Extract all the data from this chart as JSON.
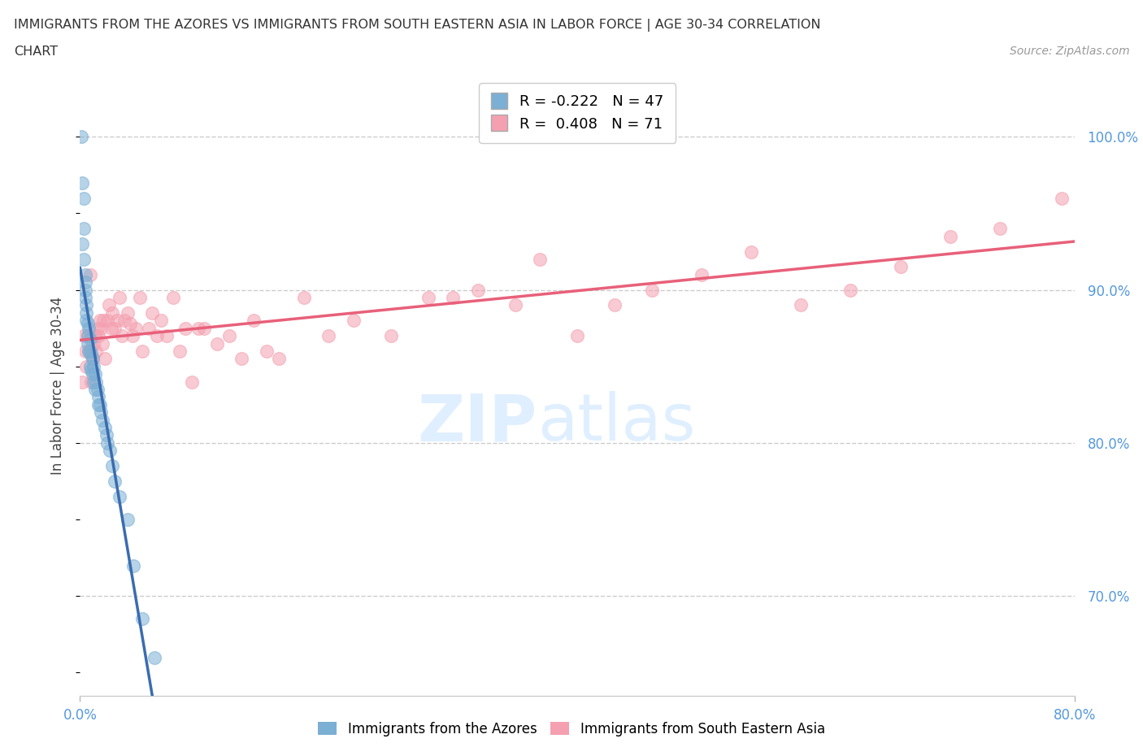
{
  "title_line1": "IMMIGRANTS FROM THE AZORES VS IMMIGRANTS FROM SOUTH EASTERN ASIA IN LABOR FORCE | AGE 30-34 CORRELATION",
  "title_line2": "CHART",
  "source_text": "Source: ZipAtlas.com",
  "xlabel_left": "Immigrants from the Azores",
  "ylabel": "In Labor Force | Age 30-34",
  "xlabel_right": "Immigrants from South Eastern Asia",
  "xlim": [
    0.0,
    0.8
  ],
  "ylim": [
    0.635,
    1.04
  ],
  "yticks": [
    0.7,
    0.8,
    0.9,
    1.0
  ],
  "blue_R": -0.222,
  "blue_N": 47,
  "pink_R": 0.408,
  "pink_N": 71,
  "blue_color": "#7BAFD4",
  "pink_color": "#F4A0B0",
  "blue_line_color": "#3A6CB0",
  "pink_line_color": "#E8607A",
  "watermark_zip": "ZIP",
  "watermark_atlas": "atlas",
  "blue_scatter_x": [
    0.001,
    0.002,
    0.002,
    0.003,
    0.003,
    0.003,
    0.004,
    0.004,
    0.004,
    0.004,
    0.005,
    0.005,
    0.005,
    0.006,
    0.006,
    0.006,
    0.007,
    0.007,
    0.008,
    0.008,
    0.008,
    0.009,
    0.009,
    0.01,
    0.01,
    0.011,
    0.011,
    0.012,
    0.012,
    0.013,
    0.014,
    0.015,
    0.015,
    0.016,
    0.017,
    0.018,
    0.02,
    0.021,
    0.022,
    0.024,
    0.026,
    0.028,
    0.032,
    0.038,
    0.043,
    0.05,
    0.06
  ],
  "blue_scatter_y": [
    1.0,
    0.97,
    0.93,
    0.96,
    0.94,
    0.92,
    0.91,
    0.905,
    0.9,
    0.895,
    0.89,
    0.885,
    0.88,
    0.878,
    0.87,
    0.865,
    0.875,
    0.86,
    0.868,
    0.86,
    0.85,
    0.858,
    0.848,
    0.855,
    0.845,
    0.85,
    0.84,
    0.845,
    0.835,
    0.84,
    0.835,
    0.83,
    0.825,
    0.825,
    0.82,
    0.815,
    0.81,
    0.805,
    0.8,
    0.795,
    0.785,
    0.775,
    0.765,
    0.75,
    0.72,
    0.685,
    0.66
  ],
  "pink_scatter_x": [
    0.002,
    0.003,
    0.004,
    0.005,
    0.006,
    0.007,
    0.008,
    0.009,
    0.01,
    0.011,
    0.012,
    0.013,
    0.014,
    0.015,
    0.016,
    0.017,
    0.018,
    0.019,
    0.02,
    0.022,
    0.023,
    0.025,
    0.026,
    0.028,
    0.03,
    0.032,
    0.034,
    0.036,
    0.038,
    0.04,
    0.042,
    0.045,
    0.048,
    0.05,
    0.055,
    0.058,
    0.062,
    0.065,
    0.07,
    0.075,
    0.08,
    0.085,
    0.09,
    0.095,
    0.1,
    0.11,
    0.12,
    0.13,
    0.14,
    0.15,
    0.16,
    0.18,
    0.2,
    0.22,
    0.25,
    0.28,
    0.3,
    0.32,
    0.35,
    0.37,
    0.4,
    0.43,
    0.46,
    0.5,
    0.54,
    0.58,
    0.62,
    0.66,
    0.7,
    0.74,
    0.79
  ],
  "pink_scatter_y": [
    0.84,
    0.87,
    0.86,
    0.85,
    0.87,
    0.86,
    0.91,
    0.84,
    0.855,
    0.865,
    0.87,
    0.86,
    0.875,
    0.87,
    0.88,
    0.875,
    0.865,
    0.88,
    0.855,
    0.88,
    0.89,
    0.875,
    0.885,
    0.875,
    0.88,
    0.895,
    0.87,
    0.88,
    0.885,
    0.878,
    0.87,
    0.875,
    0.895,
    0.86,
    0.875,
    0.885,
    0.87,
    0.88,
    0.87,
    0.895,
    0.86,
    0.875,
    0.84,
    0.875,
    0.875,
    0.865,
    0.87,
    0.855,
    0.88,
    0.86,
    0.855,
    0.895,
    0.87,
    0.88,
    0.87,
    0.895,
    0.895,
    0.9,
    0.89,
    0.92,
    0.87,
    0.89,
    0.9,
    0.91,
    0.925,
    0.89,
    0.9,
    0.915,
    0.935,
    0.94,
    0.96
  ]
}
